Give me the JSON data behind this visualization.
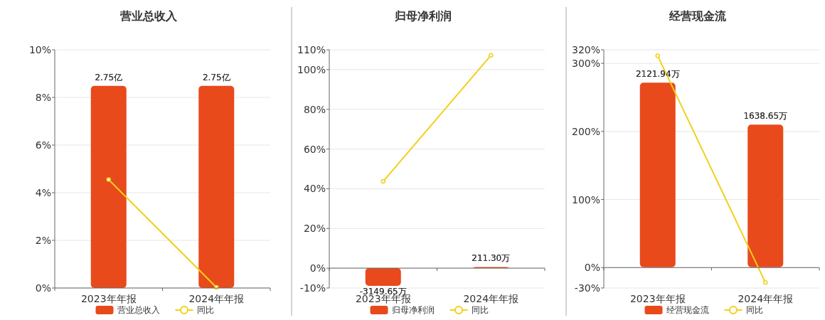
{
  "chart_data": [
    {
      "type": "bar",
      "title": "营业总收入",
      "categories": [
        "2023年年报",
        "2024年年报"
      ],
      "series": [
        {
          "name": "营业总收入",
          "axis": "y2",
          "color": "#e84a1c",
          "values": [
            2.75,
            2.75
          ],
          "value_labels": [
            "2.75亿",
            "2.75亿"
          ]
        },
        {
          "name": "同比",
          "type": "line",
          "color": "#f2d01a",
          "values": [
            4.55,
            0.03
          ]
        }
      ],
      "ylim": [
        0,
        10
      ],
      "yticks": [
        {
          "value": 0,
          "label": "0%"
        },
        {
          "value": 2,
          "label": "2%"
        },
        {
          "value": 4,
          "label": "4%"
        },
        {
          "value": 6,
          "label": "6%"
        },
        {
          "value": 8,
          "label": "8%"
        },
        {
          "value": 10,
          "label": "10%"
        }
      ],
      "y2lim": [
        0,
        3.24
      ],
      "grid": "y",
      "legend": "bottom",
      "marker": "circle"
    },
    {
      "type": "bar",
      "title": "归母净利润",
      "categories": [
        "2023年年报",
        "2024年年报"
      ],
      "series": [
        {
          "name": "归母净利润",
          "axis": "y2",
          "color": "#e84a1c",
          "values": [
            -3149.65,
            211.3
          ],
          "value_labels": [
            "-3149.65万",
            "211.30万"
          ]
        },
        {
          "name": "同比",
          "type": "line",
          "color": "#f2d01a",
          "values": [
            43.7,
            107.2
          ]
        }
      ],
      "ylim": [
        -10,
        110
      ],
      "yticks": [
        {
          "value": -10,
          "label": "-10%"
        },
        {
          "value": 0,
          "label": "0%"
        },
        {
          "value": 20,
          "label": "20%"
        },
        {
          "value": 40,
          "label": "40%"
        },
        {
          "value": 60,
          "label": "60%"
        },
        {
          "value": 80,
          "label": "80%"
        },
        {
          "value": 100,
          "label": "100%"
        },
        {
          "value": 110,
          "label": "110%"
        }
      ],
      "y2lim": [
        -3530,
        38800
      ],
      "grid": "y",
      "legend": "bottom",
      "marker": "circle"
    },
    {
      "type": "bar",
      "title": "经营现金流",
      "categories": [
        "2023年年报",
        "2024年年报"
      ],
      "series": [
        {
          "name": "经营现金流",
          "axis": "y2",
          "color": "#e84a1c",
          "values": [
            2121.94,
            1638.65
          ],
          "value_labels": [
            "2121.94万",
            "1638.65万"
          ]
        },
        {
          "name": "同比",
          "type": "line",
          "color": "#f2d01a",
          "values": [
            311,
            -22
          ]
        }
      ],
      "ylim": [
        -30,
        320
      ],
      "yticks": [
        {
          "value": -30,
          "label": "-30%"
        },
        {
          "value": 0,
          "label": "0%"
        },
        {
          "value": 100,
          "label": "100%"
        },
        {
          "value": 200,
          "label": "200%"
        },
        {
          "value": 300,
          "label": "300%"
        },
        {
          "value": 320,
          "label": "320%"
        }
      ],
      "y2lim": [
        -240,
        2500
      ],
      "grid": "y",
      "legend": "bottom",
      "marker": "circle"
    }
  ]
}
